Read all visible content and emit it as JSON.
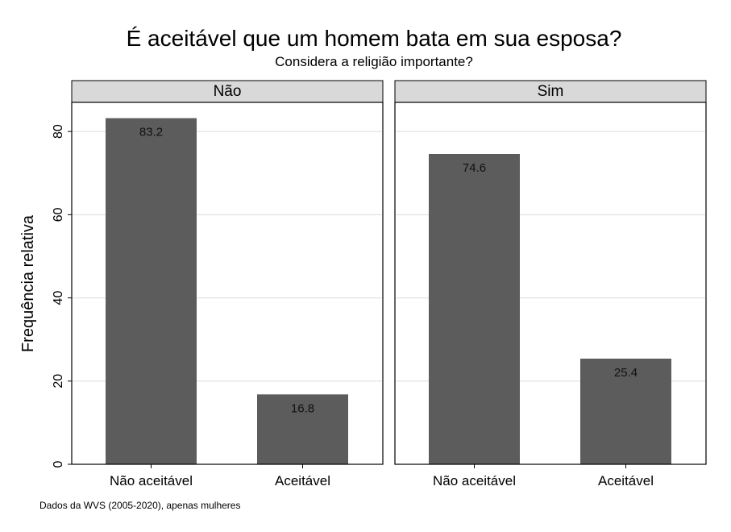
{
  "chart_data": {
    "type": "bar",
    "title": "É aceitável que um homem bata em sua esposa?",
    "subtitle": "Considera a religião importante?",
    "ylabel": "Frequência relativa",
    "xlabel": "",
    "ylim": [
      0,
      87
    ],
    "yticks": [
      0,
      20,
      40,
      60,
      80
    ],
    "grid": true,
    "note": "Dados da WVS (2005-2020), apenas mulheres",
    "categories": [
      "Não aceitável",
      "Aceitável"
    ],
    "panels": [
      {
        "label": "Não",
        "values": [
          83.2,
          16.8
        ],
        "value_labels": [
          "83.2",
          "16.8"
        ]
      },
      {
        "label": "Sim",
        "values": [
          74.6,
          25.4
        ],
        "value_labels": [
          "74.6",
          "25.4"
        ]
      }
    ],
    "colors": {
      "bar": "#5c5c5c",
      "panel_header_fill": "#d9d9d9",
      "grid": "#dcdcdc",
      "axis": "#000000"
    }
  }
}
